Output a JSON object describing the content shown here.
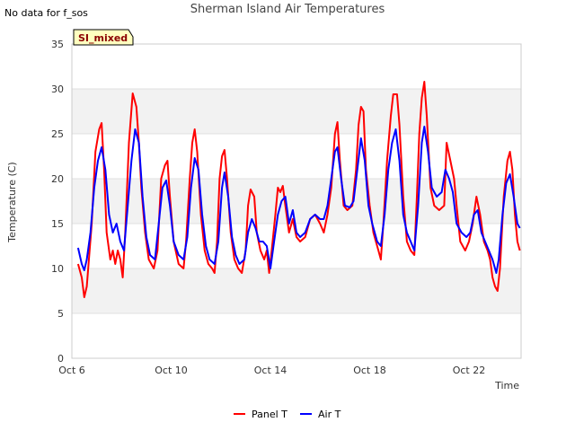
{
  "header": {
    "title": "Sherman Island Air Temperatures",
    "nodata_note": "No data for f_sos",
    "badge": "SI_mixed"
  },
  "chart_data": {
    "type": "line",
    "title": "Sherman Island Air Temperatures",
    "xlabel": "Time",
    "ylabel": "Temperature (C)",
    "xlim": [
      0,
      18.1
    ],
    "ylim": [
      0,
      35
    ],
    "yticks": [
      0,
      5,
      10,
      15,
      20,
      25,
      30,
      35
    ],
    "xtick_positions": [
      0,
      4,
      8,
      12,
      16
    ],
    "xtick_labels": [
      "Oct 6",
      "Oct 10",
      "Oct 14",
      "Oct 18",
      "Oct 22"
    ],
    "grid": "horizontal bands",
    "legend_position": "bottom-center",
    "series": [
      {
        "name": "Panel T",
        "color": "#ff0000",
        "points": [
          [
            0.25,
            10.5
          ],
          [
            0.4,
            9
          ],
          [
            0.5,
            6.8
          ],
          [
            0.6,
            8
          ],
          [
            0.8,
            15
          ],
          [
            0.95,
            23
          ],
          [
            1.1,
            25.5
          ],
          [
            1.2,
            26.2
          ],
          [
            1.3,
            21
          ],
          [
            1.4,
            14
          ],
          [
            1.55,
            11
          ],
          [
            1.65,
            12
          ],
          [
            1.75,
            10.5
          ],
          [
            1.85,
            12
          ],
          [
            1.95,
            11
          ],
          [
            2.05,
            9
          ],
          [
            2.15,
            14
          ],
          [
            2.3,
            24
          ],
          [
            2.45,
            29.5
          ],
          [
            2.6,
            28
          ],
          [
            2.7,
            24
          ],
          [
            2.8,
            19
          ],
          [
            2.95,
            14
          ],
          [
            3.1,
            11
          ],
          [
            3.3,
            10
          ],
          [
            3.45,
            12
          ],
          [
            3.6,
            20
          ],
          [
            3.75,
            21.5
          ],
          [
            3.85,
            22
          ],
          [
            3.95,
            18
          ],
          [
            4.1,
            13
          ],
          [
            4.3,
            10.5
          ],
          [
            4.5,
            10
          ],
          [
            4.6,
            13
          ],
          [
            4.75,
            20
          ],
          [
            4.85,
            24
          ],
          [
            4.95,
            25.5
          ],
          [
            5.05,
            23
          ],
          [
            5.2,
            16
          ],
          [
            5.35,
            12
          ],
          [
            5.5,
            10.5
          ],
          [
            5.65,
            10
          ],
          [
            5.75,
            9.5
          ],
          [
            5.85,
            13
          ],
          [
            5.95,
            20
          ],
          [
            6.05,
            22.5
          ],
          [
            6.15,
            23.2
          ],
          [
            6.25,
            20
          ],
          [
            6.4,
            14
          ],
          [
            6.55,
            11
          ],
          [
            6.7,
            10
          ],
          [
            6.85,
            9.5
          ],
          [
            7.0,
            12
          ],
          [
            7.1,
            17
          ],
          [
            7.2,
            18.8
          ],
          [
            7.35,
            18
          ],
          [
            7.45,
            14
          ],
          [
            7.6,
            12
          ],
          [
            7.75,
            11
          ],
          [
            7.85,
            12
          ],
          [
            7.95,
            9.5
          ],
          [
            8.05,
            12
          ],
          [
            8.2,
            16
          ],
          [
            8.3,
            19
          ],
          [
            8.4,
            18.5
          ],
          [
            8.5,
            19.2
          ],
          [
            8.6,
            17
          ],
          [
            8.75,
            14
          ],
          [
            8.9,
            15.5
          ],
          [
            9.05,
            13.5
          ],
          [
            9.2,
            13
          ],
          [
            9.4,
            13.5
          ],
          [
            9.6,
            15.5
          ],
          [
            9.8,
            16
          ],
          [
            10.0,
            15
          ],
          [
            10.15,
            14
          ],
          [
            10.3,
            16
          ],
          [
            10.45,
            19
          ],
          [
            10.6,
            25
          ],
          [
            10.7,
            26.3
          ],
          [
            10.8,
            22
          ],
          [
            10.95,
            17
          ],
          [
            11.1,
            16.5
          ],
          [
            11.3,
            17
          ],
          [
            11.45,
            21
          ],
          [
            11.55,
            26
          ],
          [
            11.65,
            28
          ],
          [
            11.75,
            27.5
          ],
          [
            11.85,
            21
          ],
          [
            12.0,
            17
          ],
          [
            12.15,
            14
          ],
          [
            12.35,
            12
          ],
          [
            12.45,
            11
          ],
          [
            12.55,
            15
          ],
          [
            12.7,
            22
          ],
          [
            12.85,
            27
          ],
          [
            12.95,
            29.4
          ],
          [
            13.1,
            29.4
          ],
          [
            13.2,
            26
          ],
          [
            13.35,
            18
          ],
          [
            13.5,
            13
          ],
          [
            13.65,
            12
          ],
          [
            13.8,
            11.5
          ],
          [
            13.9,
            18
          ],
          [
            14.0,
            25
          ],
          [
            14.1,
            29
          ],
          [
            14.2,
            30.8
          ],
          [
            14.3,
            27
          ],
          [
            14.45,
            19
          ],
          [
            14.6,
            17
          ],
          [
            14.8,
            16.5
          ],
          [
            15.0,
            17
          ],
          [
            15.1,
            24
          ],
          [
            15.25,
            22
          ],
          [
            15.4,
            20
          ],
          [
            15.5,
            17
          ],
          [
            15.65,
            13
          ],
          [
            15.85,
            12
          ],
          [
            16.0,
            13
          ],
          [
            16.15,
            15
          ],
          [
            16.3,
            18
          ],
          [
            16.45,
            16
          ],
          [
            16.6,
            13
          ],
          [
            16.75,
            12
          ],
          [
            16.85,
            11
          ],
          [
            16.95,
            9
          ],
          [
            17.05,
            8
          ],
          [
            17.15,
            7.5
          ],
          [
            17.25,
            10
          ],
          [
            17.4,
            18
          ],
          [
            17.55,
            22
          ],
          [
            17.65,
            23
          ],
          [
            17.75,
            21
          ],
          [
            17.85,
            16
          ],
          [
            17.95,
            13
          ],
          [
            18.05,
            12
          ]
        ]
      },
      {
        "name": "Air T",
        "color": "#0000ff",
        "points": [
          [
            0.25,
            12.3
          ],
          [
            0.4,
            10.5
          ],
          [
            0.5,
            9.8
          ],
          [
            0.6,
            11
          ],
          [
            0.75,
            14
          ],
          [
            0.9,
            19
          ],
          [
            1.05,
            22
          ],
          [
            1.2,
            23.5
          ],
          [
            1.35,
            21
          ],
          [
            1.5,
            16
          ],
          [
            1.65,
            14
          ],
          [
            1.8,
            15
          ],
          [
            1.95,
            13
          ],
          [
            2.1,
            12
          ],
          [
            2.25,
            17
          ],
          [
            2.4,
            22
          ],
          [
            2.55,
            25.5
          ],
          [
            2.7,
            24
          ],
          [
            2.85,
            18
          ],
          [
            3.0,
            13.5
          ],
          [
            3.15,
            11.5
          ],
          [
            3.35,
            11
          ],
          [
            3.5,
            15
          ],
          [
            3.65,
            19
          ],
          [
            3.8,
            19.8
          ],
          [
            3.95,
            17
          ],
          [
            4.1,
            13
          ],
          [
            4.3,
            11.5
          ],
          [
            4.5,
            11
          ],
          [
            4.65,
            13.5
          ],
          [
            4.8,
            19
          ],
          [
            4.95,
            22.3
          ],
          [
            5.1,
            21
          ],
          [
            5.25,
            16
          ],
          [
            5.4,
            12.5
          ],
          [
            5.55,
            11
          ],
          [
            5.75,
            10.5
          ],
          [
            5.9,
            13
          ],
          [
            6.05,
            19
          ],
          [
            6.15,
            20.7
          ],
          [
            6.3,
            18
          ],
          [
            6.45,
            13.5
          ],
          [
            6.6,
            11.5
          ],
          [
            6.75,
            10.5
          ],
          [
            6.95,
            11
          ],
          [
            7.1,
            14
          ],
          [
            7.25,
            15.5
          ],
          [
            7.4,
            14.5
          ],
          [
            7.55,
            13
          ],
          [
            7.7,
            13
          ],
          [
            7.85,
            12.5
          ],
          [
            8.0,
            10
          ],
          [
            8.15,
            13
          ],
          [
            8.3,
            16
          ],
          [
            8.45,
            17.5
          ],
          [
            8.6,
            18
          ],
          [
            8.75,
            15
          ],
          [
            8.9,
            16.5
          ],
          [
            9.05,
            14
          ],
          [
            9.2,
            13.5
          ],
          [
            9.4,
            14
          ],
          [
            9.6,
            15.5
          ],
          [
            9.8,
            16
          ],
          [
            10.0,
            15.5
          ],
          [
            10.15,
            15.5
          ],
          [
            10.3,
            17
          ],
          [
            10.45,
            20
          ],
          [
            10.6,
            23
          ],
          [
            10.7,
            23.5
          ],
          [
            10.85,
            20
          ],
          [
            11.0,
            17
          ],
          [
            11.2,
            16.8
          ],
          [
            11.35,
            17.5
          ],
          [
            11.5,
            21
          ],
          [
            11.65,
            24.5
          ],
          [
            11.8,
            22
          ],
          [
            11.95,
            17
          ],
          [
            12.1,
            15
          ],
          [
            12.3,
            13
          ],
          [
            12.45,
            12.5
          ],
          [
            12.6,
            16
          ],
          [
            12.75,
            21
          ],
          [
            12.9,
            24
          ],
          [
            13.05,
            25.5
          ],
          [
            13.2,
            22
          ],
          [
            13.35,
            16
          ],
          [
            13.5,
            14
          ],
          [
            13.65,
            13
          ],
          [
            13.8,
            12
          ],
          [
            13.95,
            17
          ],
          [
            14.1,
            24
          ],
          [
            14.2,
            25.8
          ],
          [
            14.35,
            23
          ],
          [
            14.5,
            19
          ],
          [
            14.7,
            18
          ],
          [
            14.9,
            18.5
          ],
          [
            15.05,
            21
          ],
          [
            15.2,
            20
          ],
          [
            15.35,
            18.5
          ],
          [
            15.5,
            15
          ],
          [
            15.7,
            14
          ],
          [
            15.9,
            13.5
          ],
          [
            16.05,
            14
          ],
          [
            16.2,
            16
          ],
          [
            16.35,
            16.5
          ],
          [
            16.5,
            14
          ],
          [
            16.65,
            13
          ],
          [
            16.8,
            12
          ],
          [
            16.95,
            11
          ],
          [
            17.1,
            9.5
          ],
          [
            17.2,
            11
          ],
          [
            17.35,
            16
          ],
          [
            17.5,
            19.5
          ],
          [
            17.65,
            20.5
          ],
          [
            17.8,
            18
          ],
          [
            17.95,
            15
          ],
          [
            18.05,
            14.5
          ]
        ]
      }
    ]
  }
}
